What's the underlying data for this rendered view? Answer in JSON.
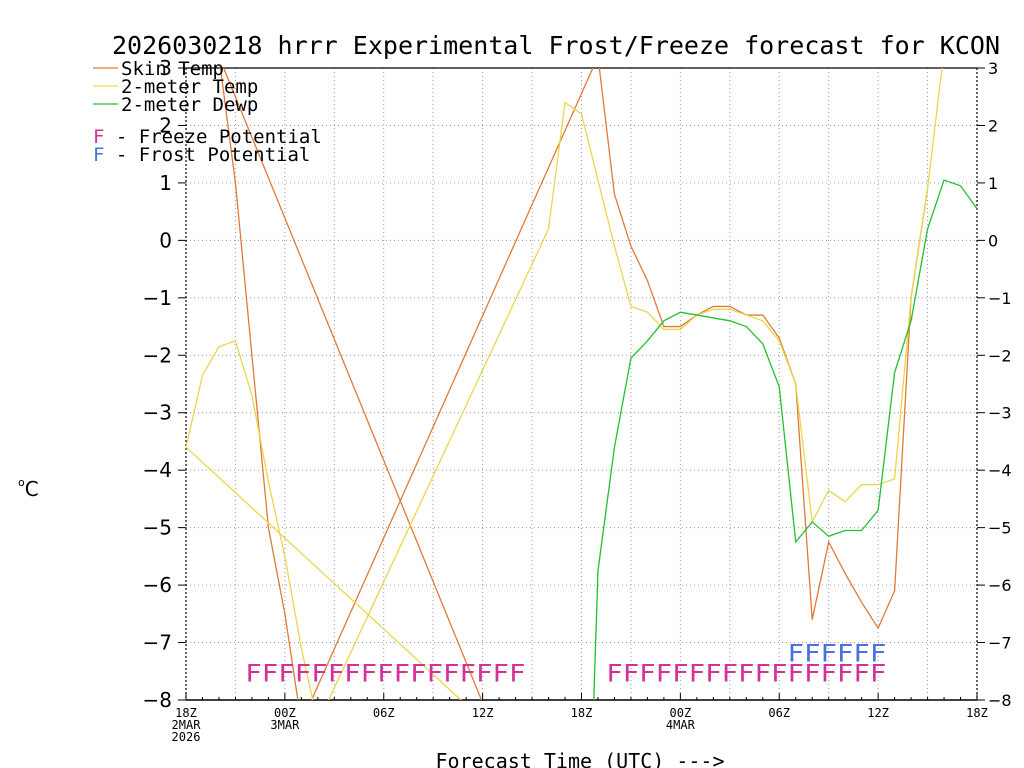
{
  "chart_data": {
    "type": "line",
    "title": "2026030218 hrrr Experimental Frost/Freeze forecast for KCON",
    "ylabel_main": "C",
    "ylabel_sup": "o",
    "xlabel": "Forecast Time (UTC) --->",
    "xlim": [
      0,
      48
    ],
    "ylim": [
      -8,
      3
    ],
    "y_ticks": [
      3,
      2,
      1,
      0,
      -1,
      -2,
      -3,
      -4,
      -5,
      -6,
      -7,
      -8
    ],
    "y_tick_labels": [
      "3",
      "2",
      "1",
      "0",
      "−1",
      "−2",
      "−3",
      "−4",
      "−5",
      "−6",
      "−7",
      "−8"
    ],
    "x_ticks": [
      {
        "x": 0,
        "lines": [
          "18Z",
          "2MAR",
          "2026"
        ]
      },
      {
        "x": 6,
        "lines": [
          "00Z",
          "3MAR"
        ]
      },
      {
        "x": 12,
        "lines": [
          "06Z"
        ]
      },
      {
        "x": 18,
        "lines": [
          "12Z"
        ]
      },
      {
        "x": 24,
        "lines": [
          "18Z"
        ]
      },
      {
        "x": 30,
        "lines": [
          "00Z",
          "4MAR"
        ]
      },
      {
        "x": 36,
        "lines": [
          "06Z"
        ]
      },
      {
        "x": 42,
        "lines": [
          "12Z"
        ]
      },
      {
        "x": 48,
        "lines": [
          "18Z"
        ]
      }
    ],
    "grid": true,
    "legend": [
      {
        "label": "Skin Temp",
        "color": "#e07a38"
      },
      {
        "label": "2-meter Temp",
        "color": "#ecd64a"
      },
      {
        "label": "2-meter Dewp",
        "color": "#22c032"
      }
    ],
    "potential_legend": [
      {
        "marker": "F",
        "text": " - Freeze Potential",
        "color": "#d4309a"
      },
      {
        "marker": "F",
        "text": " - Frost Potential",
        "color": "#4a70e0"
      }
    ],
    "series": [
      {
        "name": "Skin Temp",
        "color": "#e07a38",
        "x": [
          2,
          3,
          4,
          5,
          6,
          7,
          25,
          26,
          27,
          28,
          29,
          30,
          31,
          32,
          33,
          34,
          35,
          36,
          37,
          38,
          39,
          40,
          41,
          42,
          43,
          44,
          45
        ],
        "y": [
          3.2,
          1.0,
          -2.0,
          -5.0,
          -6.5,
          -8.4,
          3.2,
          0.8,
          -0.1,
          -0.7,
          -1.5,
          -1.5,
          -1.3,
          -1.15,
          -1.15,
          -1.3,
          -1.3,
          -1.7,
          -2.5,
          -6.6,
          -5.25,
          -5.8,
          -6.3,
          -6.75,
          -6.1,
          -1.0,
          0.9
        ],
        "from_edge": {
          "x": 18.5,
          "y_from": -8.4,
          "x_top": 20.8
        }
      },
      {
        "name": "2-meter Temp",
        "color": "#ecd64a",
        "x": [
          0,
          1,
          2,
          3,
          4,
          5,
          6,
          7,
          8,
          22,
          23,
          24,
          25,
          26,
          27,
          28,
          29,
          30,
          31,
          32,
          33,
          34,
          35,
          36,
          37,
          38,
          39,
          40,
          41,
          42,
          43,
          44,
          45,
          46
        ],
        "y": [
          -3.6,
          -2.35,
          -1.85,
          -1.75,
          -2.7,
          -4.2,
          -5.5,
          -7.1,
          -8.4,
          0.2,
          2.4,
          2.2,
          1.05,
          -0.1,
          -1.15,
          -1.25,
          -1.55,
          -1.55,
          -1.3,
          -1.2,
          -1.2,
          -1.3,
          -1.4,
          -1.75,
          -2.5,
          -4.9,
          -4.35,
          -4.55,
          -4.25,
          -4.25,
          -4.15,
          -1.0,
          0.9,
          3.3
        ],
        "from_edge": {
          "x": 18.2,
          "y_from": -8.4
        }
      },
      {
        "name": "2-meter Dewp",
        "color": "#22c032",
        "x": [
          24.7,
          25,
          26,
          27,
          28,
          29,
          30,
          31,
          32,
          33,
          34,
          35,
          36,
          37,
          38,
          39,
          40,
          41,
          42,
          43,
          44,
          45,
          46,
          47,
          48
        ],
        "y": [
          -8.4,
          -5.75,
          -3.6,
          -2.05,
          -1.75,
          -1.4,
          -1.25,
          -1.3,
          -1.35,
          -1.4,
          -1.5,
          -1.8,
          -2.55,
          -5.25,
          -4.9,
          -5.15,
          -5.05,
          -5.05,
          -4.7,
          -2.3,
          -1.4,
          0.2,
          1.05,
          0.95,
          0.55
        ]
      }
    ],
    "freeze_markers": {
      "color": "#d4309a",
      "y": -7.5,
      "ranges": [
        [
          3.6,
          20.6
        ],
        [
          25.5,
          42.5
        ]
      ]
    },
    "frost_markers": {
      "color": "#4a70e0",
      "y": -7.1,
      "range": [
        36.5,
        42.5
      ]
    }
  }
}
